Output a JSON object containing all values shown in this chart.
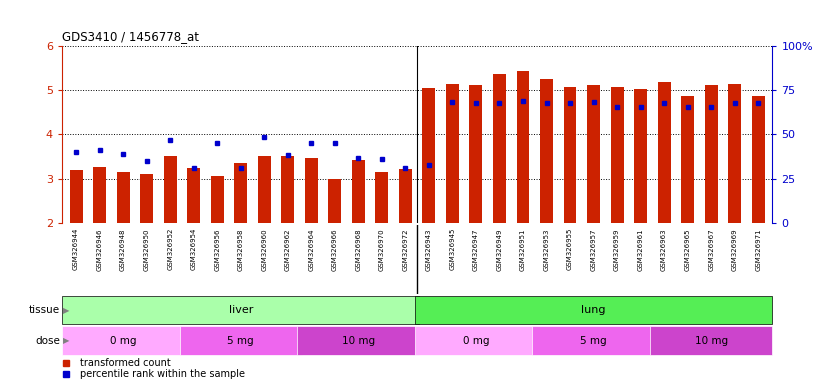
{
  "title": "GDS3410 / 1456778_at",
  "samples": [
    "GSM326944",
    "GSM326946",
    "GSM326948",
    "GSM326950",
    "GSM326952",
    "GSM326954",
    "GSM326956",
    "GSM326958",
    "GSM326960",
    "GSM326962",
    "GSM326964",
    "GSM326966",
    "GSM326968",
    "GSM326970",
    "GSM326972",
    "GSM326943",
    "GSM326945",
    "GSM326947",
    "GSM326949",
    "GSM326951",
    "GSM326953",
    "GSM326955",
    "GSM326957",
    "GSM326959",
    "GSM326961",
    "GSM326963",
    "GSM326965",
    "GSM326967",
    "GSM326969",
    "GSM326971"
  ],
  "bar_values": [
    3.2,
    3.27,
    3.15,
    3.1,
    3.5,
    3.23,
    3.06,
    3.35,
    3.5,
    3.5,
    3.47,
    2.98,
    3.43,
    3.14,
    3.22,
    5.05,
    5.14,
    5.12,
    5.37,
    5.44,
    5.26,
    5.08,
    5.11,
    5.07,
    5.02,
    5.18,
    4.87,
    5.12,
    5.14,
    4.86
  ],
  "percentile_values": [
    3.6,
    3.65,
    3.55,
    3.4,
    3.87,
    3.25,
    3.8,
    3.25,
    3.93,
    3.53,
    3.8,
    3.8,
    3.47,
    3.45,
    3.25,
    3.3,
    4.73,
    4.72,
    4.72,
    4.75,
    4.72,
    4.72,
    4.73,
    4.62,
    4.63,
    4.72,
    4.63,
    4.62,
    4.7,
    4.72
  ],
  "bar_color": "#CC2200",
  "point_color": "#0000CC",
  "ylim": [
    2.0,
    6.0
  ],
  "yticks": [
    2,
    3,
    4,
    5,
    6
  ],
  "y2lim": [
    0,
    100
  ],
  "y2ticks": [
    0,
    25,
    50,
    75,
    100
  ],
  "tissue_groups": [
    {
      "label": "liver",
      "start": 0,
      "end": 15,
      "color": "#AAFFAA"
    },
    {
      "label": "lung",
      "start": 15,
      "end": 30,
      "color": "#55EE55"
    }
  ],
  "dose_groups": [
    {
      "label": "0 mg",
      "start": 0,
      "end": 5,
      "color": "#FFAAFF"
    },
    {
      "label": "5 mg",
      "start": 5,
      "end": 10,
      "color": "#EE66EE"
    },
    {
      "label": "10 mg",
      "start": 10,
      "end": 15,
      "color": "#CC44CC"
    },
    {
      "label": "0 mg",
      "start": 15,
      "end": 20,
      "color": "#FFAAFF"
    },
    {
      "label": "5 mg",
      "start": 20,
      "end": 25,
      "color": "#EE66EE"
    },
    {
      "label": "10 mg",
      "start": 25,
      "end": 30,
      "color": "#CC44CC"
    }
  ],
  "legend_entries": [
    {
      "label": "transformed count",
      "color": "#CC2200"
    },
    {
      "label": "percentile rank within the sample",
      "color": "#0000CC"
    }
  ],
  "bar_width": 0.55,
  "plot_bg": "#FFFFFF",
  "xtick_bg": "#DDDDDD",
  "fig_bg": "#FFFFFF"
}
